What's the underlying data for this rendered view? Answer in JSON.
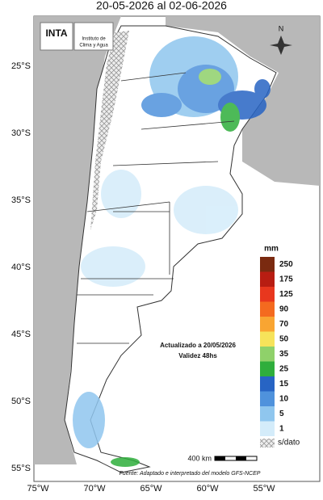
{
  "header": {
    "title": "20-05-2026 al 02-06-2026"
  },
  "logos": {
    "inta": "INTA",
    "institute": [
      "Instituto de",
      "Clima y Agua"
    ]
  },
  "axes": {
    "latitudes": [
      "25°S",
      "30°S",
      "35°S",
      "40°S",
      "45°S",
      "50°S",
      "55°S"
    ],
    "longitudes": [
      "75°W",
      "70°W",
      "65°W",
      "60°W",
      "55°W"
    ]
  },
  "legend": {
    "unit": "mm",
    "items": [
      {
        "label": "250",
        "color": "#7a2a10"
      },
      {
        "label": "175",
        "color": "#b81d12"
      },
      {
        "label": "125",
        "color": "#e8371e"
      },
      {
        "label": "90",
        "color": "#f46a1f"
      },
      {
        "label": "70",
        "color": "#f9a532"
      },
      {
        "label": "50",
        "color": "#f6e35a"
      },
      {
        "label": "35",
        "color": "#8fd16a"
      },
      {
        "label": "25",
        "color": "#2fae3c"
      },
      {
        "label": "15",
        "color": "#2764c4"
      },
      {
        "label": "10",
        "color": "#4f92dc"
      },
      {
        "label": "5",
        "color": "#8fc6ee"
      },
      {
        "label": "1",
        "color": "#d4ecfa"
      }
    ],
    "no_data": "s/dato"
  },
  "annotation": [
    "Actualizado a 20/05/2026",
    "Validez 48hs"
  ],
  "scale": "400 km",
  "source": "Fuente: Adaptado e interpretado del modelo GFS-NCEP"
}
